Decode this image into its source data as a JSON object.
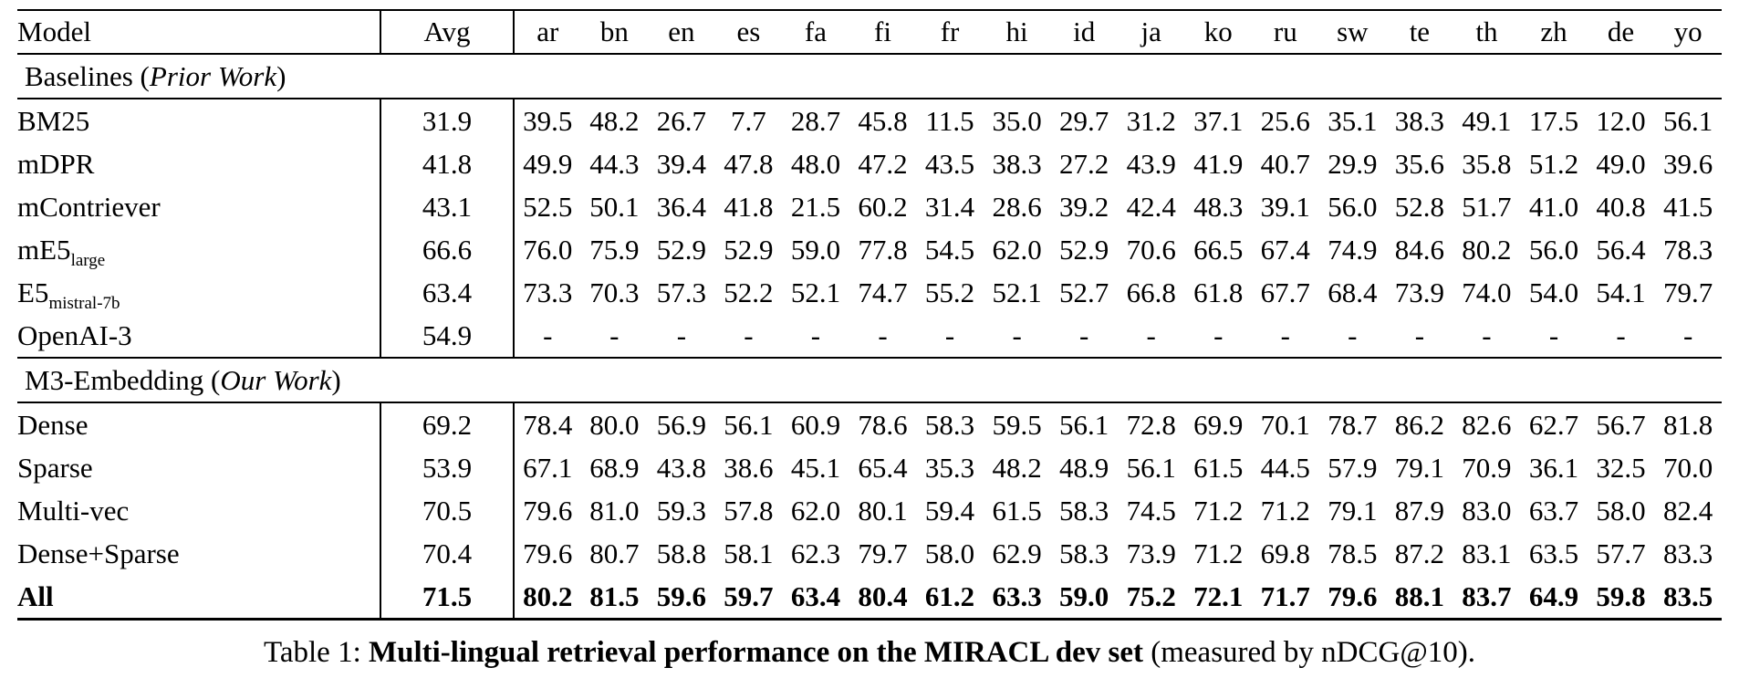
{
  "table": {
    "columns": [
      "Model",
      "Avg",
      "ar",
      "bn",
      "en",
      "es",
      "fa",
      "fi",
      "fr",
      "hi",
      "id",
      "ja",
      "ko",
      "ru",
      "sw",
      "te",
      "th",
      "zh",
      "de",
      "yo"
    ],
    "sections": [
      {
        "label_pre": "Baselines (",
        "label_italic": "Prior Work",
        "label_post": ")",
        "rows": [
          {
            "model": "BM25",
            "model_sub": "",
            "bold": false,
            "values": [
              "31.9",
              "39.5",
              "48.2",
              "26.7",
              "7.7",
              "28.7",
              "45.8",
              "11.5",
              "35.0",
              "29.7",
              "31.2",
              "37.1",
              "25.6",
              "35.1",
              "38.3",
              "49.1",
              "17.5",
              "12.0",
              "56.1"
            ]
          },
          {
            "model": "mDPR",
            "model_sub": "",
            "bold": false,
            "values": [
              "41.8",
              "49.9",
              "44.3",
              "39.4",
              "47.8",
              "48.0",
              "47.2",
              "43.5",
              "38.3",
              "27.2",
              "43.9",
              "41.9",
              "40.7",
              "29.9",
              "35.6",
              "35.8",
              "51.2",
              "49.0",
              "39.6"
            ]
          },
          {
            "model": "mContriever",
            "model_sub": "",
            "bold": false,
            "values": [
              "43.1",
              "52.5",
              "50.1",
              "36.4",
              "41.8",
              "21.5",
              "60.2",
              "31.4",
              "28.6",
              "39.2",
              "42.4",
              "48.3",
              "39.1",
              "56.0",
              "52.8",
              "51.7",
              "41.0",
              "40.8",
              "41.5"
            ]
          },
          {
            "model": "mE5",
            "model_sub": "large",
            "bold": false,
            "values": [
              "66.6",
              "76.0",
              "75.9",
              "52.9",
              "52.9",
              "59.0",
              "77.8",
              "54.5",
              "62.0",
              "52.9",
              "70.6",
              "66.5",
              "67.4",
              "74.9",
              "84.6",
              "80.2",
              "56.0",
              "56.4",
              "78.3"
            ]
          },
          {
            "model": "E5",
            "model_sub": "mistral-7b",
            "bold": false,
            "values": [
              "63.4",
              "73.3",
              "70.3",
              "57.3",
              "52.2",
              "52.1",
              "74.7",
              "55.2",
              "52.1",
              "52.7",
              "66.8",
              "61.8",
              "67.7",
              "68.4",
              "73.9",
              "74.0",
              "54.0",
              "54.1",
              "79.7"
            ]
          },
          {
            "model": "OpenAI-3",
            "model_sub": "",
            "bold": false,
            "values": [
              "54.9",
              "-",
              "-",
              "-",
              "-",
              "-",
              "-",
              "-",
              "-",
              "-",
              "-",
              "-",
              "-",
              "-",
              "-",
              "-",
              "-",
              "-",
              "-"
            ]
          }
        ]
      },
      {
        "label_pre": "M3-Embedding (",
        "label_italic": "Our Work",
        "label_post": ")",
        "rows": [
          {
            "model": "Dense",
            "model_sub": "",
            "bold": false,
            "values": [
              "69.2",
              "78.4",
              "80.0",
              "56.9",
              "56.1",
              "60.9",
              "78.6",
              "58.3",
              "59.5",
              "56.1",
              "72.8",
              "69.9",
              "70.1",
              "78.7",
              "86.2",
              "82.6",
              "62.7",
              "56.7",
              "81.8"
            ]
          },
          {
            "model": "Sparse",
            "model_sub": "",
            "bold": false,
            "values": [
              "53.9",
              "67.1",
              "68.9",
              "43.8",
              "38.6",
              "45.1",
              "65.4",
              "35.3",
              "48.2",
              "48.9",
              "56.1",
              "61.5",
              "44.5",
              "57.9",
              "79.1",
              "70.9",
              "36.1",
              "32.5",
              "70.0"
            ]
          },
          {
            "model": "Multi-vec",
            "model_sub": "",
            "bold": false,
            "values": [
              "70.5",
              "79.6",
              "81.0",
              "59.3",
              "57.8",
              "62.0",
              "80.1",
              "59.4",
              "61.5",
              "58.3",
              "74.5",
              "71.2",
              "71.2",
              "79.1",
              "87.9",
              "83.0",
              "63.7",
              "58.0",
              "82.4"
            ]
          },
          {
            "model": "Dense+Sparse",
            "model_sub": "",
            "bold": false,
            "values": [
              "70.4",
              "79.6",
              "80.7",
              "58.8",
              "58.1",
              "62.3",
              "79.7",
              "58.0",
              "62.9",
              "58.3",
              "73.9",
              "71.2",
              "69.8",
              "78.5",
              "87.2",
              "83.1",
              "63.5",
              "57.7",
              "83.3"
            ]
          },
          {
            "model": "All",
            "model_sub": "",
            "bold": true,
            "values": [
              "71.5",
              "80.2",
              "81.5",
              "59.6",
              "59.7",
              "63.4",
              "80.4",
              "61.2",
              "63.3",
              "59.0",
              "75.2",
              "72.1",
              "71.7",
              "79.6",
              "88.1",
              "83.7",
              "64.9",
              "59.8",
              "83.5"
            ]
          }
        ]
      }
    ]
  },
  "caption": {
    "prefix": "Table 1: ",
    "bold": "Multi-lingual retrieval performance on the MIRACL dev set",
    "suffix": " (measured by nDCG@10)."
  }
}
